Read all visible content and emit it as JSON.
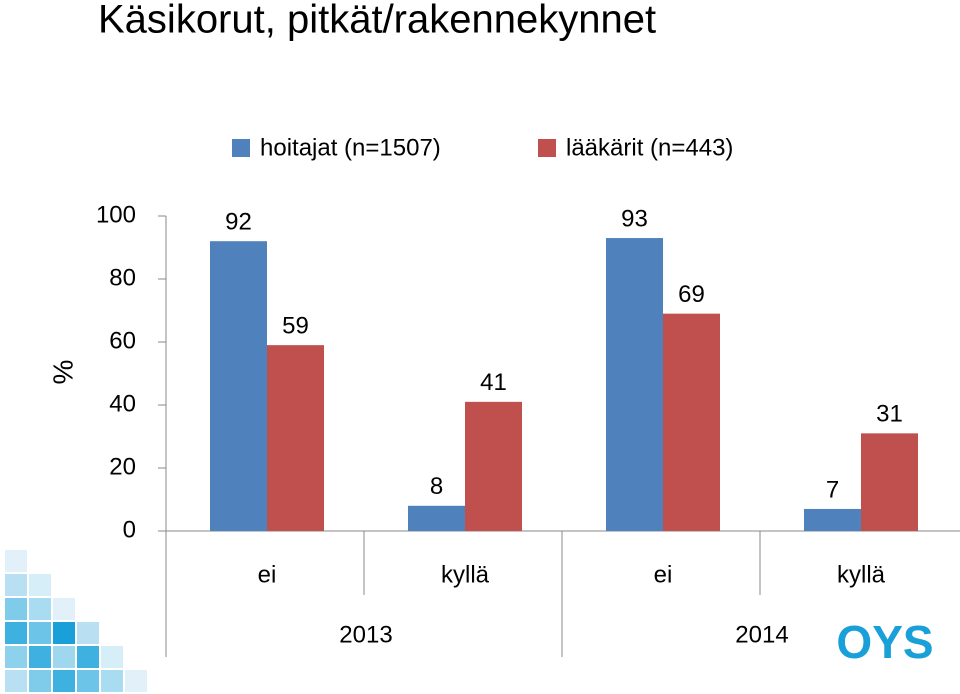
{
  "chart_data": {
    "type": "bar",
    "title": "Käsikorut, pitkät/rakennekynnet",
    "y_label": "%",
    "categories": [
      "ei",
      "kyllä",
      "ei",
      "kyllä"
    ],
    "groups": [
      "2013",
      "2014"
    ],
    "series": [
      {
        "name": "hoitajat (n=1507)",
        "color": "#4f81bd",
        "values": [
          92,
          8,
          93,
          7
        ]
      },
      {
        "name": "lääkärit (n=443)",
        "color": "#c0504d",
        "values": [
          59,
          41,
          69,
          31
        ]
      }
    ],
    "ylim": [
      0,
      100
    ],
    "yticks": [
      0,
      20,
      40,
      60,
      80,
      100
    ],
    "legend": "top",
    "logo": "OYS"
  }
}
